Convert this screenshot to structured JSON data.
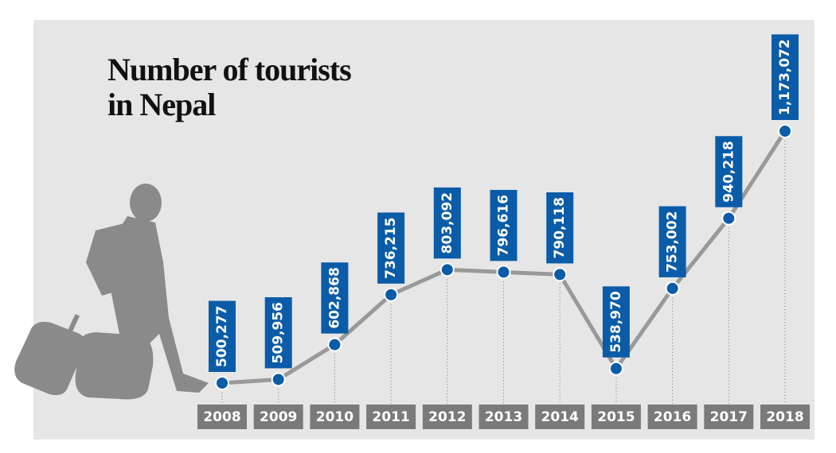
{
  "chart_data": {
    "type": "line",
    "title": "Number of tourists in Nepal",
    "categories": [
      "2008",
      "2009",
      "2010",
      "2011",
      "2012",
      "2013",
      "2014",
      "2015",
      "2016",
      "2017",
      "2018"
    ],
    "values": [
      500277,
      509956,
      602868,
      736215,
      803092,
      796616,
      790118,
      538970,
      753002,
      940218,
      1173072
    ],
    "value_labels": [
      "500,277",
      "509,956",
      "602,868",
      "736,215",
      "803,092",
      "796,616",
      "790,118",
      "538,970",
      "753,002",
      "940,218",
      "1,173,072"
    ],
    "color": "#999999",
    "marker_color": "#0b5ca8"
  }
}
